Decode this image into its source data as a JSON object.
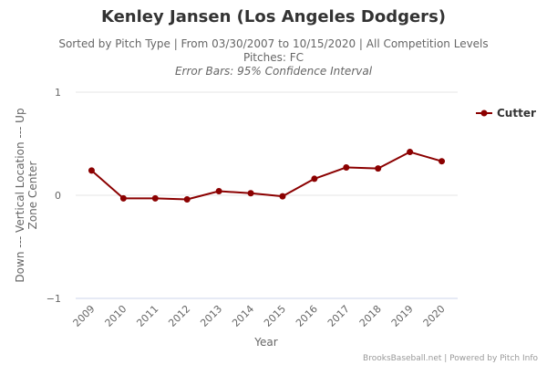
{
  "header": {
    "title": "Kenley Jansen (Los Angeles Dodgers)",
    "subtitle_line1": "Sorted by Pitch Type | From 03/30/2007 to 10/15/2020 | All Competition Levels",
    "subtitle_line2": "Pitches: FC",
    "subtitle_line3": "Error Bars: 95% Confidence Interval"
  },
  "credit": "BrooksBaseball.net | Powered by Pitch Info",
  "chart_data": {
    "type": "line",
    "title": "Kenley Jansen (Los Angeles Dodgers)",
    "xlabel": "Year",
    "ylabel_line1": "Down --- Vertical Location --- Up",
    "ylabel_line2": "Zone Center",
    "categories": [
      "2009",
      "2010",
      "2011",
      "2012",
      "2013",
      "2014",
      "2015",
      "2016",
      "2017",
      "2018",
      "2019",
      "2020"
    ],
    "y_ticks": [
      1,
      0,
      -1
    ],
    "y_tick_labels": [
      "1",
      "0",
      "−1"
    ],
    "ylim": [
      -1,
      1
    ],
    "grid": true,
    "legend_position": "top-right",
    "series": [
      {
        "name": "Cutter",
        "color": "#8b0000",
        "values": [
          0.24,
          -0.03,
          -0.03,
          -0.04,
          0.04,
          0.02,
          -0.01,
          0.16,
          0.27,
          0.26,
          0.42,
          0.33
        ]
      }
    ]
  }
}
